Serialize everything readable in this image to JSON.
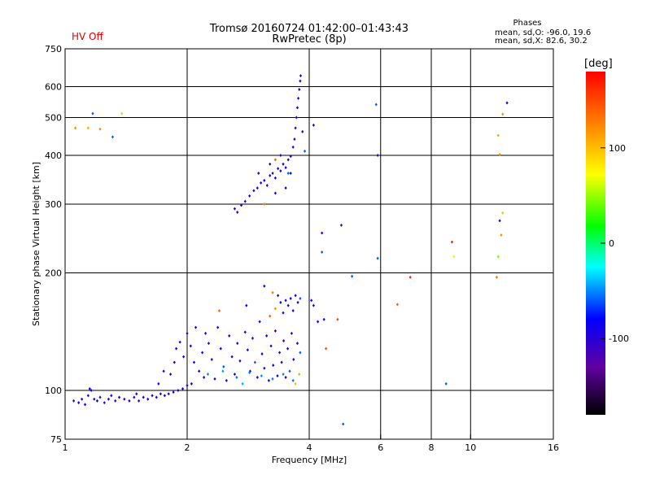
{
  "header": {
    "hv_status": "HV Off",
    "title_line1": "Tromsø 20160724 01:42:00–01:43:43",
    "title_line2": "RwPretec (8p)"
  },
  "phase_stats": {
    "heading": "Phases",
    "o_line": "mean, sd,O: -96.0, 19.6",
    "x_line": "mean, sd,X: 82.6, 30.2"
  },
  "chart_data": {
    "type": "scatter",
    "xlabel": "Frequency [MHz]",
    "ylabel": "Stationary phase Virtual Height [km]",
    "x_scale": "log",
    "y_scale": "log",
    "xlim": [
      1,
      16
    ],
    "ylim": [
      75,
      750
    ],
    "x_ticks": [
      {
        "value": 1,
        "label": "1"
      },
      {
        "value": 2,
        "label": "2"
      },
      {
        "value": 4,
        "label": "4"
      },
      {
        "value": 6,
        "label": "6"
      },
      {
        "value": 8,
        "label": "8"
      },
      {
        "value": 10,
        "label": "10"
      },
      {
        "value": 16,
        "label": "16"
      }
    ],
    "x_grid": [
      2,
      4,
      6,
      8,
      10
    ],
    "y_ticks": [
      {
        "value": 75,
        "label": "75"
      },
      {
        "value": 100,
        "label": "100"
      },
      {
        "value": 200,
        "label": "200"
      },
      {
        "value": 300,
        "label": "300"
      },
      {
        "value": 400,
        "label": "400"
      },
      {
        "value": 500,
        "label": "500"
      },
      {
        "value": 600,
        "label": "600"
      },
      {
        "value": 750,
        "label": "750"
      }
    ],
    "y_grid": [
      100,
      200,
      300,
      400,
      500,
      600
    ],
    "grid": true,
    "colorbar": {
      "label": "[deg]",
      "range": [
        -180,
        180
      ],
      "ticks": [
        {
          "value": 100,
          "label": "100"
        },
        {
          "value": 0,
          "label": "0"
        },
        {
          "value": -100,
          "label": "-100"
        }
      ],
      "stops": [
        "#000000",
        "#6000a0",
        "#0000ff",
        "#00ffff",
        "#00ff00",
        "#ffff00",
        "#ff8000",
        "#ff0000"
      ]
    },
    "points": [
      [
        1.05,
        94,
        -95
      ],
      [
        1.08,
        93,
        -98
      ],
      [
        1.1,
        95,
        -100
      ],
      [
        1.12,
        92,
        -92
      ],
      [
        1.14,
        97,
        -95
      ],
      [
        1.16,
        100,
        -90
      ],
      [
        1.18,
        95,
        -97
      ],
      [
        1.2,
        94,
        -85
      ],
      [
        1.22,
        96,
        -95
      ],
      [
        1.25,
        93,
        -100
      ],
      [
        1.28,
        95,
        -92
      ],
      [
        1.3,
        97,
        -95
      ],
      [
        1.33,
        94,
        -98
      ],
      [
        1.36,
        96,
        -93
      ],
      [
        1.4,
        95,
        -95
      ],
      [
        1.44,
        94,
        -90
      ],
      [
        1.48,
        96,
        -96
      ],
      [
        1.52,
        94,
        -100
      ],
      [
        1.56,
        96,
        -94
      ],
      [
        1.6,
        95,
        -97
      ],
      [
        1.64,
        97,
        -95
      ],
      [
        1.68,
        96,
        -88
      ],
      [
        1.72,
        98,
        -92
      ],
      [
        1.76,
        97,
        -95
      ],
      [
        1.8,
        98,
        -100
      ],
      [
        1.85,
        99,
        -95
      ],
      [
        1.9,
        100,
        -93
      ],
      [
        1.95,
        101,
        -97
      ],
      [
        2.0,
        103,
        -95
      ],
      [
        2.05,
        104,
        -90
      ],
      [
        1.15,
        101,
        -96
      ],
      [
        1.5,
        98,
        -94
      ],
      [
        1.7,
        104,
        -96
      ],
      [
        1.75,
        112,
        -95
      ],
      [
        1.82,
        110,
        -96
      ],
      [
        1.86,
        118,
        -93
      ],
      [
        1.88,
        128,
        -95
      ],
      [
        1.92,
        133,
        -98
      ],
      [
        1.96,
        122,
        -95
      ],
      [
        2.0,
        140,
        -96
      ],
      [
        2.04,
        130,
        -94
      ],
      [
        2.08,
        118,
        -97
      ],
      [
        2.1,
        145,
        -95
      ],
      [
        2.14,
        112,
        -92
      ],
      [
        2.18,
        125,
        -100
      ],
      [
        2.2,
        108,
        -95
      ],
      [
        2.22,
        140,
        -93
      ],
      [
        2.26,
        132,
        -96
      ],
      [
        2.3,
        120,
        -94
      ],
      [
        2.34,
        107,
        -95
      ],
      [
        2.38,
        145,
        -97
      ],
      [
        2.42,
        128,
        -95
      ],
      [
        2.46,
        115,
        -60
      ],
      [
        2.5,
        106,
        -95
      ],
      [
        2.54,
        138,
        -92
      ],
      [
        2.58,
        122,
        -96
      ],
      [
        2.62,
        110,
        -95
      ],
      [
        2.66,
        132,
        -98
      ],
      [
        2.7,
        119,
        -95
      ],
      [
        2.74,
        104,
        -40
      ],
      [
        2.78,
        141,
        -94
      ],
      [
        2.82,
        127,
        -95
      ],
      [
        2.86,
        112,
        -97
      ],
      [
        2.9,
        136,
        -95
      ],
      [
        2.94,
        118,
        -60
      ],
      [
        2.98,
        108,
        -95
      ],
      [
        3.02,
        150,
        -93
      ],
      [
        3.06,
        124,
        -96
      ],
      [
        3.1,
        114,
        -95
      ],
      [
        3.14,
        138,
        -97
      ],
      [
        3.18,
        106,
        -95
      ],
      [
        3.22,
        130,
        -94
      ],
      [
        3.26,
        116,
        -95
      ],
      [
        3.3,
        142,
        -150
      ],
      [
        3.34,
        109,
        -95
      ],
      [
        3.38,
        125,
        -96
      ],
      [
        3.42,
        118,
        -95
      ],
      [
        3.46,
        134,
        -97
      ],
      [
        3.5,
        108,
        -94
      ],
      [
        3.54,
        128,
        -95
      ],
      [
        3.58,
        112,
        -60
      ],
      [
        3.62,
        140,
        -95
      ],
      [
        3.66,
        120,
        -96
      ],
      [
        3.7,
        104,
        100
      ],
      [
        3.74,
        132,
        -95
      ],
      [
        3.78,
        110,
        110
      ],
      [
        3.8,
        125,
        -60
      ],
      [
        2.25,
        110,
        -50
      ],
      [
        2.45,
        112,
        -45
      ],
      [
        2.65,
        108,
        -55
      ],
      [
        2.85,
        111,
        -50
      ],
      [
        3.05,
        109,
        -48
      ],
      [
        3.25,
        107,
        -52
      ],
      [
        3.45,
        110,
        -50
      ],
      [
        3.65,
        106,
        -55
      ],
      [
        3.2,
        155,
        140
      ],
      [
        3.3,
        162,
        120
      ],
      [
        3.35,
        175,
        -95
      ],
      [
        3.4,
        168,
        -96
      ],
      [
        3.45,
        158,
        -95
      ],
      [
        3.5,
        170,
        -94
      ],
      [
        3.55,
        165,
        -97
      ],
      [
        3.6,
        172,
        -95
      ],
      [
        3.65,
        160,
        -96
      ],
      [
        3.7,
        175,
        -93
      ],
      [
        3.75,
        168,
        -95
      ],
      [
        3.8,
        172,
        -60
      ],
      [
        3.1,
        185,
        -95
      ],
      [
        3.25,
        178,
        130
      ],
      [
        2.8,
        165,
        -95
      ],
      [
        2.4,
        160,
        140
      ],
      [
        4.05,
        170,
        -95
      ],
      [
        4.1,
        165,
        -96
      ],
      [
        4.2,
        150,
        -95
      ],
      [
        4.35,
        152,
        -94
      ],
      [
        4.4,
        128,
        150
      ],
      [
        4.7,
        152,
        150
      ],
      [
        4.85,
        82,
        -60
      ],
      [
        5.1,
        196,
        -60
      ],
      [
        4.3,
        226,
        -60
      ],
      [
        4.3,
        253,
        -95
      ],
      [
        4.8,
        265,
        -110
      ],
      [
        5.9,
        218,
        -60
      ],
      [
        6.6,
        166,
        140
      ],
      [
        7.1,
        195,
        165
      ],
      [
        8.7,
        104,
        -60
      ],
      [
        9.0,
        240,
        170
      ],
      [
        9.1,
        220,
        80
      ],
      [
        11.6,
        195,
        130
      ],
      [
        11.7,
        220,
        40
      ],
      [
        11.8,
        272,
        -95
      ],
      [
        11.9,
        250,
        120
      ],
      [
        12.0,
        285,
        100
      ],
      [
        11.7,
        450,
        110
      ],
      [
        11.8,
        402,
        120
      ],
      [
        12.0,
        510,
        120
      ],
      [
        12.3,
        545,
        -95
      ],
      [
        5.85,
        540,
        -60
      ],
      [
        5.9,
        400,
        -95
      ],
      [
        4.1,
        478,
        -95
      ],
      [
        1.06,
        470,
        120
      ],
      [
        1.14,
        470,
        110
      ],
      [
        1.22,
        467,
        120
      ],
      [
        1.17,
        512,
        -60
      ],
      [
        1.38,
        512,
        50
      ],
      [
        1.31,
        446,
        -60
      ],
      [
        2.62,
        292,
        -95
      ],
      [
        2.66,
        286,
        -96
      ],
      [
        2.72,
        298,
        -95
      ],
      [
        2.78,
        305,
        -94
      ],
      [
        2.85,
        315,
        -97
      ],
      [
        2.92,
        325,
        -95
      ],
      [
        2.98,
        330,
        -96
      ],
      [
        3.04,
        340,
        -95
      ],
      [
        3.1,
        345,
        -93
      ],
      [
        3.15,
        335,
        -95
      ],
      [
        3.2,
        355,
        -96
      ],
      [
        3.25,
        360,
        -95
      ],
      [
        3.3,
        350,
        -94
      ],
      [
        3.35,
        370,
        -97
      ],
      [
        3.4,
        365,
        -95
      ],
      [
        3.45,
        380,
        -96
      ],
      [
        3.5,
        372,
        -95
      ],
      [
        3.55,
        390,
        -93
      ],
      [
        3.6,
        398,
        -95
      ],
      [
        3.65,
        420,
        -96
      ],
      [
        3.68,
        440,
        -95
      ],
      [
        3.7,
        470,
        -94
      ],
      [
        3.72,
        500,
        -97
      ],
      [
        3.74,
        530,
        -95
      ],
      [
        3.76,
        560,
        -96
      ],
      [
        3.78,
        590,
        -95
      ],
      [
        3.8,
        620,
        -93
      ],
      [
        3.81,
        640,
        -95
      ],
      [
        3.1,
        300,
        130
      ],
      [
        3.3,
        390,
        140
      ],
      [
        3.55,
        360,
        -60
      ],
      [
        3.0,
        360,
        -95
      ],
      [
        3.2,
        380,
        -96
      ],
      [
        3.4,
        400,
        -95
      ],
      [
        3.6,
        360,
        -94
      ],
      [
        3.5,
        330,
        -95
      ],
      [
        3.3,
        320,
        -96
      ],
      [
        3.9,
        410,
        -60
      ],
      [
        3.85,
        460,
        -95
      ]
    ]
  }
}
